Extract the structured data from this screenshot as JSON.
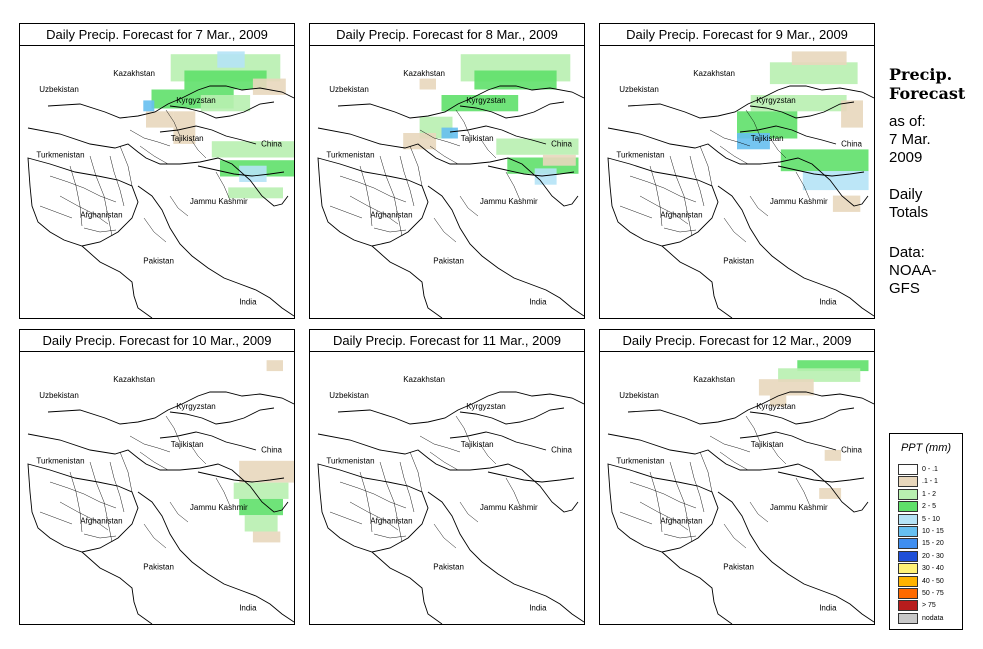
{
  "panels": [
    {
      "title": "Daily Precip. Forecast for  7 Mar., 2009",
      "precip": "day1"
    },
    {
      "title": "Daily Precip. Forecast for  8 Mar., 2009",
      "precip": "day2"
    },
    {
      "title": "Daily Precip. Forecast for  9 Mar., 2009",
      "precip": "day3"
    },
    {
      "title": "Daily Precip. Forecast for  10 Mar., 2009",
      "precip": "day4"
    },
    {
      "title": "Daily Precip. Forecast for  11 Mar., 2009",
      "precip": "day5"
    },
    {
      "title": "Daily Precip. Forecast for  12 Mar., 2009",
      "precip": "day6"
    }
  ],
  "map_labels": {
    "kazakhstan": "Kazakhstan",
    "uzbekistan": "Uzbekistan",
    "kyrgyzstan": "Kyrgyzstan",
    "tajikistan": "Tajikistan",
    "china": "China",
    "turkmenistan": "Turkmenistan",
    "afghanistan": "Afghanistan",
    "jammu_kashmir": "Jammu Kashmir",
    "pakistan": "Pakistan",
    "india": "India"
  },
  "side": {
    "heading_line1": "Precip.",
    "heading_line2": "Forecast",
    "asof_line1": "as of:",
    "asof_line2": "7 Mar.",
    "asof_line3": "2009",
    "totals_line1": "Daily",
    "totals_line2": "Totals",
    "data_line1": "Data:",
    "data_line2": "NOAA-",
    "data_line3": "GFS"
  },
  "legend": {
    "title": "PPT (mm)",
    "items": [
      {
        "label": "0 - .1",
        "color": "#ffffff"
      },
      {
        "label": ".1 - 1",
        "color": "#e8d7bc"
      },
      {
        "label": "1 - 2",
        "color": "#b8f0b0"
      },
      {
        "label": "2 - 5",
        "color": "#5fe06a"
      },
      {
        "label": "5 - 10",
        "color": "#b5e3f6"
      },
      {
        "label": "10 - 15",
        "color": "#66bff0"
      },
      {
        "label": "15 - 20",
        "color": "#3f8ef0"
      },
      {
        "label": "20 - 30",
        "color": "#1f4fd8"
      },
      {
        "label": "30 - 40",
        "color": "#fff176"
      },
      {
        "label": "40 - 50",
        "color": "#ffb300"
      },
      {
        "label": "50 - 75",
        "color": "#ff6a00"
      },
      {
        "label": "> 75",
        "color": "#b71c1c"
      },
      {
        "label": "nodata",
        "color": "#c8c8c8"
      }
    ]
  }
}
